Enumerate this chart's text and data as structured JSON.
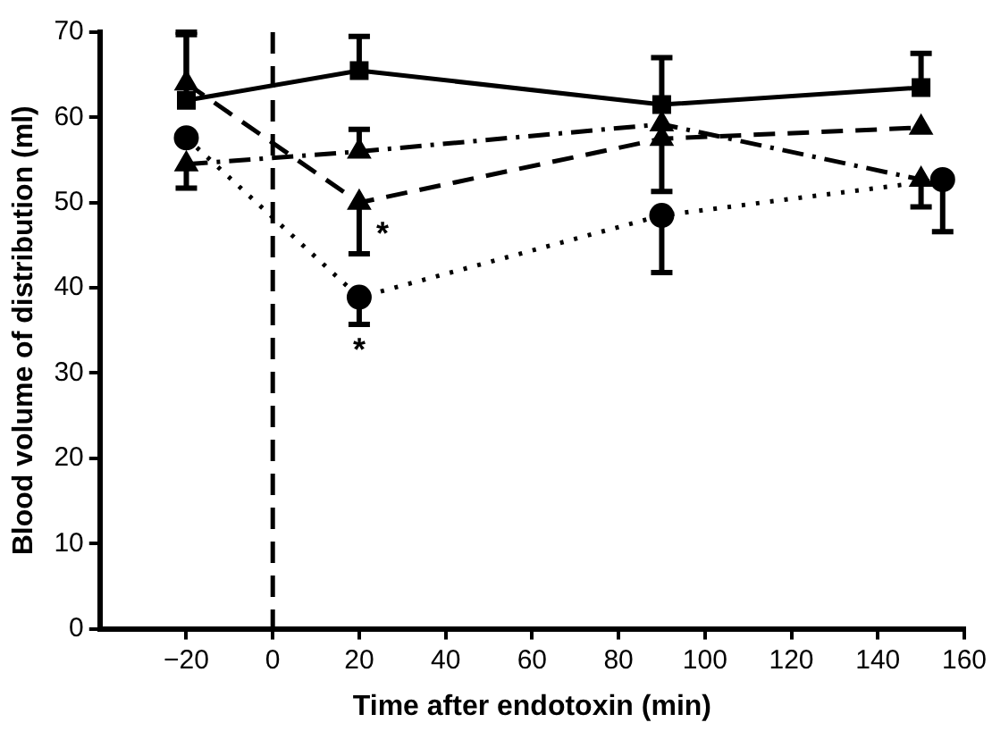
{
  "chart_data": {
    "type": "line",
    "xlabel": "Time after endotoxin (min)",
    "ylabel": "Blood volume of distribution (ml)",
    "xlim": [
      -40,
      160
    ],
    "xticks": [
      {
        "value": -20,
        "label": "−20"
      },
      0,
      20,
      40,
      60,
      80,
      100,
      120,
      140,
      160
    ],
    "ylim": [
      0,
      70
    ],
    "yticks": [
      0,
      10,
      20,
      30,
      40,
      50,
      60,
      70
    ],
    "grid": false,
    "legend": false,
    "series": [
      {
        "color": "#000000",
        "marker": "square",
        "line_style": "solid",
        "x": [
          -20,
          20,
          90,
          150
        ],
        "values": [
          62,
          65.5,
          61.5,
          63.5
        ],
        "errors": [
          [
            62,
            69.7
          ],
          [
            65.5,
            69.5
          ],
          [
            61.5,
            67
          ],
          [
            63.5,
            67.5
          ]
        ]
      },
      {
        "color": "#000000",
        "marker": "triangle",
        "line_style": "dashed",
        "x": [
          -20,
          20,
          90,
          150
        ],
        "values": [
          64,
          50,
          57.5,
          58.8
        ],
        "errors": [
          [
            64,
            70
          ],
          [
            44,
            50
          ],
          [
            51.3,
            57.5
          ],
          null
        ]
      },
      {
        "color": "#000000",
        "marker": "circle",
        "line_style": "dotted",
        "x": [
          -20,
          20,
          90,
          155
        ],
        "values": [
          57.6,
          38.9,
          48.5,
          52.7
        ],
        "errors": [
          null,
          [
            35.7,
            38.9
          ],
          [
            41.8,
            48.5
          ],
          [
            46.6,
            52.7
          ]
        ]
      },
      {
        "color": "#000000",
        "marker": "triangle",
        "line_style": "dashdot",
        "x": [
          -20,
          20,
          90,
          150
        ],
        "values": [
          54.5,
          56,
          59.2,
          52.7
        ],
        "errors": [
          [
            51.7,
            54.5
          ],
          [
            56,
            58.6
          ],
          null,
          [
            49.5,
            52.7
          ]
        ]
      }
    ],
    "ref_lines": [
      {
        "axis": "x",
        "value": 0,
        "color": "#000000",
        "line_style": "dashed"
      }
    ],
    "annotations": [
      {
        "text": "*",
        "x": 20,
        "y": 50
      },
      {
        "text": "*",
        "x": 20,
        "y": 38.9
      }
    ]
  }
}
